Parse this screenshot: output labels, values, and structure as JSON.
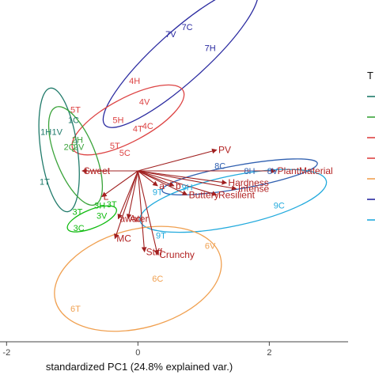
{
  "chart_data": {
    "type": "scatter",
    "xlabel": "standardized PC1 (24.8% explained var.)",
    "x_ticks": [
      "-2",
      "0",
      "2"
    ],
    "legend_title_visible": "T",
    "legend_placement": "right (partially cropped)",
    "groups": [
      {
        "id": "g1",
        "color": "#1f7a6a",
        "points": [
          {
            "label": "1H",
            "x": -1.4,
            "y": 1.35
          },
          {
            "label": "1V",
            "x": -1.23,
            "y": 1.35
          },
          {
            "label": "1C",
            "x": -0.98,
            "y": 1.55
          },
          {
            "label": "1T",
            "x": -1.42,
            "y": 0.52
          }
        ]
      },
      {
        "id": "g2",
        "color": "#3aa33a",
        "points": [
          {
            "label": "2H",
            "x": -0.92,
            "y": 1.22
          },
          {
            "label": "2Q",
            "x": -1.04,
            "y": 1.1
          },
          {
            "label": "2V",
            "x": -0.9,
            "y": 1.1
          }
        ]
      },
      {
        "id": "g3",
        "color": "#11bb11",
        "points": [
          {
            "label": "3T",
            "x": -0.92,
            "y": 0.02
          },
          {
            "label": "3H",
            "x": -0.58,
            "y": 0.12
          },
          {
            "label": "3T",
            "x": -0.4,
            "y": 0.14
          },
          {
            "label": "3V",
            "x": -0.55,
            "y": -0.05
          },
          {
            "label": "3C",
            "x": -0.9,
            "y": -0.25
          }
        ]
      },
      {
        "id": "g4",
        "color": "#dd4444",
        "points": [
          {
            "label": "4H",
            "x": -0.05,
            "y": 2.2
          },
          {
            "label": "4V",
            "x": 0.1,
            "y": 1.85
          },
          {
            "label": "4T",
            "x": 0.0,
            "y": 1.4
          },
          {
            "label": "4C",
            "x": 0.15,
            "y": 1.45
          },
          {
            "label": "5H",
            "x": -0.3,
            "y": 1.55
          },
          {
            "label": "5C",
            "x": -0.2,
            "y": 1.0
          },
          {
            "label": "5T",
            "x": -0.35,
            "y": 1.12
          },
          {
            "label": "5T",
            "x": -0.95,
            "y": 1.72
          }
        ]
      },
      {
        "id": "g5",
        "color": "#f0a050",
        "points": [
          {
            "label": "6V",
            "x": 1.1,
            "y": -0.55
          },
          {
            "label": "6C",
            "x": 0.3,
            "y": -1.1
          },
          {
            "label": "6T",
            "x": -0.95,
            "y": -1.6
          }
        ]
      },
      {
        "id": "g6",
        "color": "#2a2aa0",
        "points": [
          {
            "label": "7C",
            "x": 0.75,
            "y": 3.1
          },
          {
            "label": "7V",
            "x": 0.5,
            "y": 2.98
          },
          {
            "label": "7H",
            "x": 1.1,
            "y": 2.75
          }
        ]
      },
      {
        "id": "g7",
        "color": "#3060b0",
        "points": [
          {
            "label": "8C",
            "x": 1.25,
            "y": 0.78
          },
          {
            "label": "8H",
            "x": 1.7,
            "y": 0.7
          },
          {
            "label": "8V",
            "x": 2.05,
            "y": 0.7
          }
        ]
      },
      {
        "id": "g8",
        "color": "#22aadd",
        "points": [
          {
            "label": "9C",
            "x": 2.15,
            "y": 0.12
          },
          {
            "label": "9T",
            "x": 0.3,
            "y": 0.35
          },
          {
            "label": "9H",
            "x": 0.75,
            "y": 0.43
          },
          {
            "label": "9T",
            "x": 0.35,
            "y": -0.38
          }
        ]
      }
    ],
    "vectors": [
      {
        "label": "PV",
        "x": 1.2,
        "y": 1.1
      },
      {
        "label": "PlantMaterial",
        "x": 2.1,
        "y": 0.75
      },
      {
        "label": "Hardness",
        "x": 1.35,
        "y": 0.55
      },
      {
        "label": "Intense",
        "x": 1.5,
        "y": 0.45
      },
      {
        "label": "Resilient",
        "x": 1.2,
        "y": 0.35
      },
      {
        "label": "Buttery",
        "x": 0.75,
        "y": 0.35
      },
      {
        "label": "Sweet",
        "x": -0.85,
        "y": 0.75
      },
      {
        "label": "L",
        "x": -0.55,
        "y": 0.32
      },
      {
        "label": "a",
        "x": 0.3,
        "y": 0.5
      },
      {
        "label": "b",
        "x": 0.55,
        "y": 0.5
      },
      {
        "label": "awater",
        "x": -0.3,
        "y": -0.05
      },
      {
        "label": "Ac",
        "x": -0.15,
        "y": -0.05
      },
      {
        "label": "MC",
        "x": -0.35,
        "y": -0.38
      },
      {
        "label": "Stiff",
        "x": 0.1,
        "y": -0.6
      },
      {
        "label": "Crunchy",
        "x": 0.3,
        "y": -0.65
      }
    ],
    "ellipses": [
      {
        "group": "g6",
        "cx": 0.65,
        "cy": 2.65,
        "rx": 1.55,
        "ry": 0.38,
        "angle": -42
      },
      {
        "group": "g4",
        "cx": -0.15,
        "cy": 1.6,
        "rx": 0.95,
        "ry": 0.33,
        "angle": -28
      },
      {
        "group": "g1",
        "cx": -1.2,
        "cy": 1.1,
        "rx": 0.95,
        "ry": 0.28,
        "angle": 82
      },
      {
        "group": "g2",
        "cx": -0.95,
        "cy": 1.0,
        "rx": 0.8,
        "ry": 0.3,
        "angle": 68
      },
      {
        "group": "g3",
        "cx": -0.7,
        "cy": -0.05,
        "rx": 0.4,
        "ry": 0.14,
        "angle": -22
      },
      {
        "group": "g7",
        "cx": 1.55,
        "cy": 0.65,
        "rx": 1.2,
        "ry": 0.18,
        "angle": -10
      },
      {
        "group": "g8",
        "cx": 1.45,
        "cy": 0.25,
        "rx": 1.45,
        "ry": 0.38,
        "angle": -12
      },
      {
        "group": "g5",
        "cx": 0.0,
        "cy": -1.05,
        "rx": 1.3,
        "ry": 0.75,
        "angle": -15
      }
    ],
    "legend_colors": [
      "#1f7a6a",
      "#3aa33a",
      "#dd4444",
      "#dd4444",
      "#f0a050",
      "#2a2aa0",
      "#22aadd"
    ],
    "xlim": [
      -2.1,
      3.2
    ],
    "ylim": [
      -2.1,
      3.6
    ],
    "grid": false
  }
}
